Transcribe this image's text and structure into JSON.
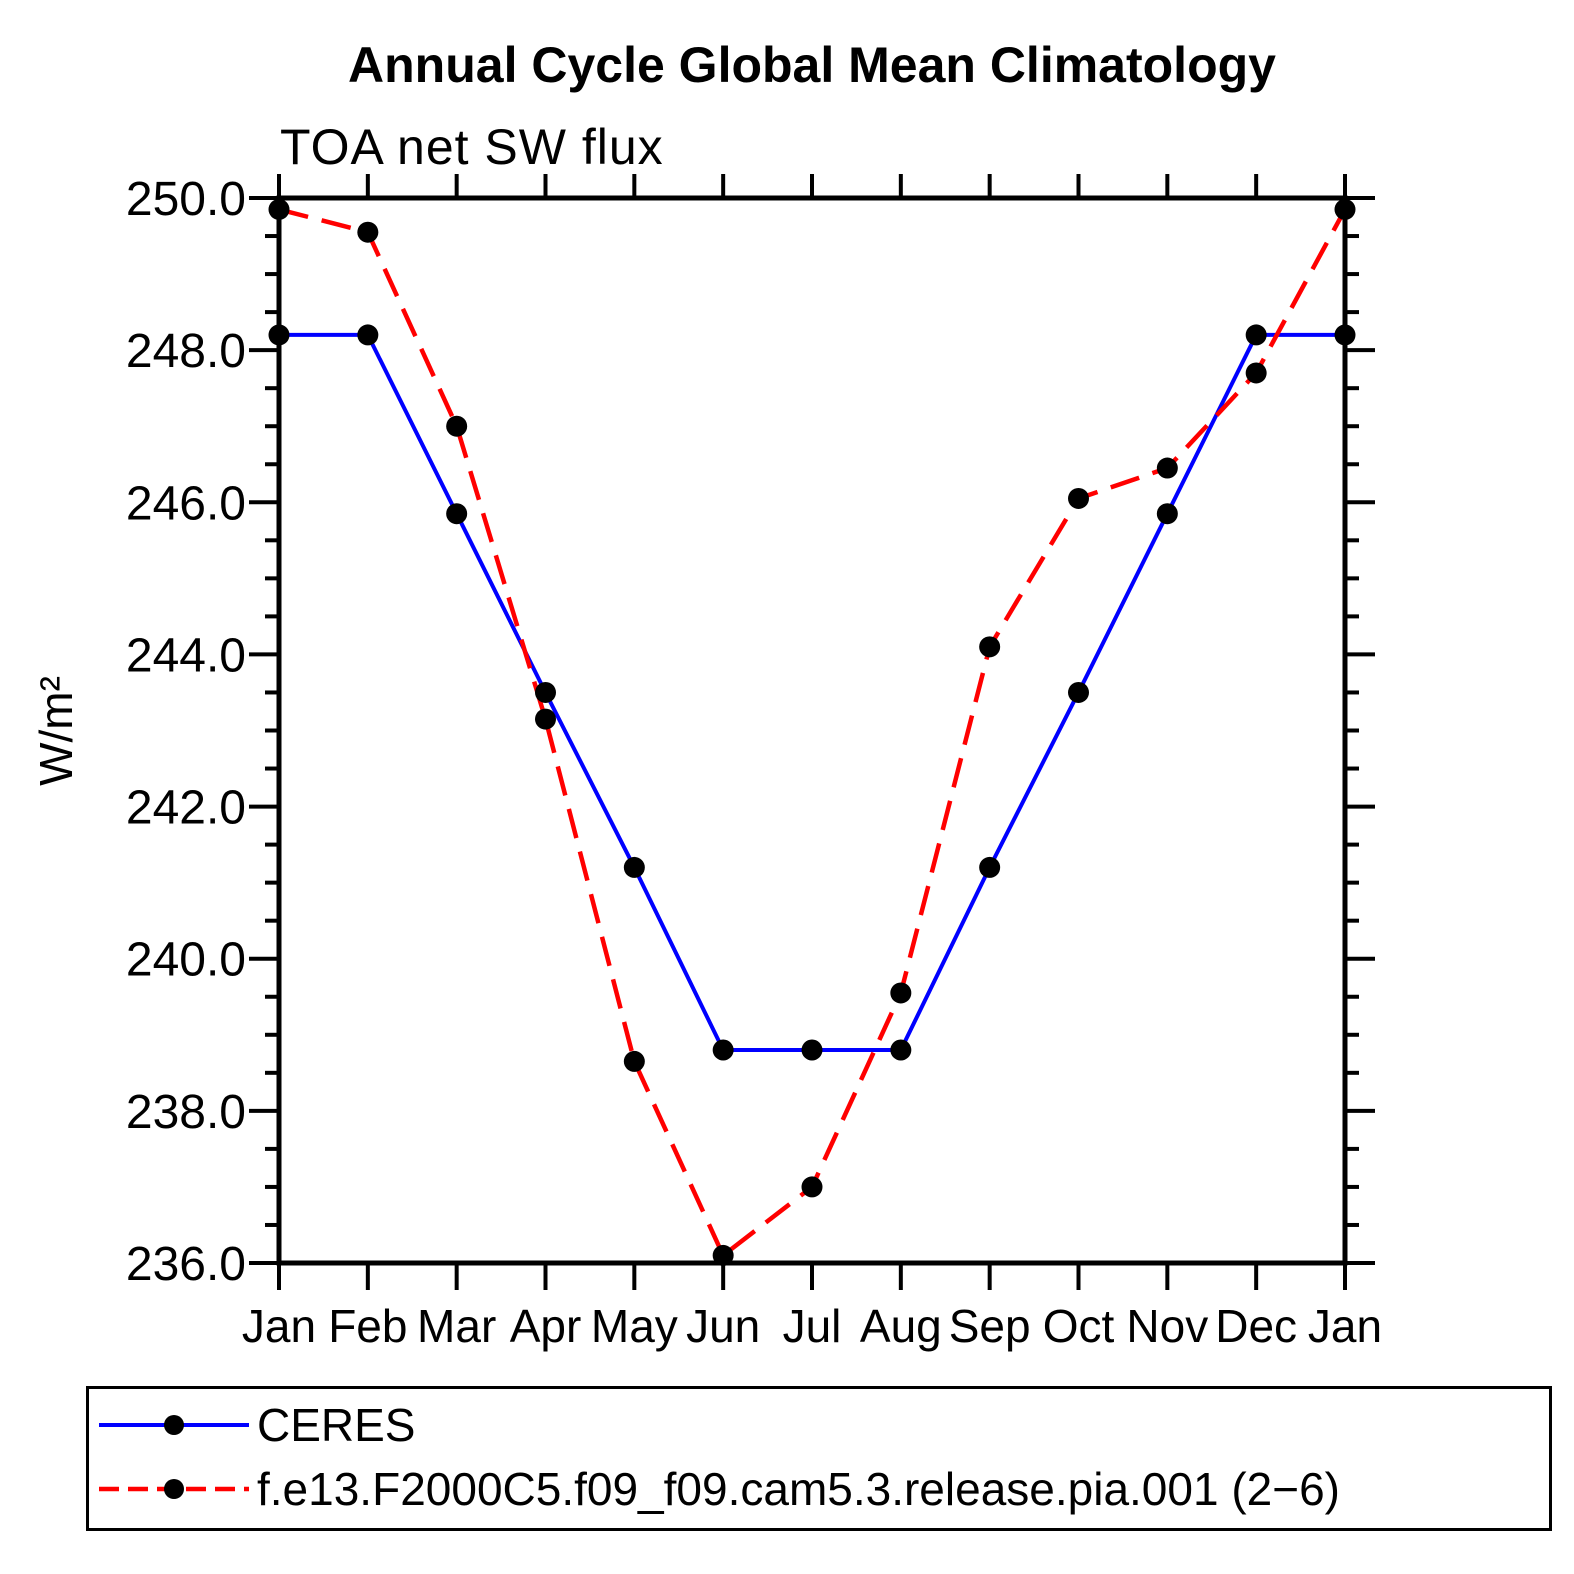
{
  "page": {
    "background": "#ffffff"
  },
  "colors": {
    "axis": "#000000",
    "text": "#000000",
    "ceres_line": "#0000ff",
    "model_line": "#ff0000",
    "marker": "#000000"
  },
  "chart_data": {
    "type": "line",
    "title": "Annual Cycle Global Mean Climatology",
    "subtitle": "TOA net SW flux",
    "xlabel": "",
    "ylabel": "W/m²",
    "categories": [
      "Jan",
      "Feb",
      "Mar",
      "Apr",
      "May",
      "Jun",
      "Jul",
      "Aug",
      "Sep",
      "Oct",
      "Nov",
      "Dec",
      "Jan"
    ],
    "y_axis": {
      "min": 236.0,
      "max": 250.0,
      "major_tick_step": 2.0,
      "minor_tick_step": 0.5,
      "tick_labels": [
        "250.0",
        "248.0",
        "246.0",
        "244.0",
        "242.0",
        "240.0",
        "238.0",
        "236.0"
      ]
    },
    "grid": false,
    "legend_position": "bottom",
    "series": [
      {
        "name": "CERES",
        "color": "#0000ff",
        "line_style": "solid",
        "marker": "filled-circle",
        "marker_color": "#000000",
        "values": [
          248.2,
          248.2,
          245.85,
          243.5,
          241.2,
          238.8,
          238.8,
          238.8,
          241.2,
          243.5,
          245.85,
          248.2,
          248.2
        ]
      },
      {
        "name": "f.e13.F2000C5.f09_f09.cam5.3.release.pia.001 (2−6)",
        "color": "#ff0000",
        "line_style": "dashed",
        "marker": "filled-circle",
        "marker_color": "#000000",
        "values": [
          249.85,
          249.55,
          247.0,
          243.15,
          238.65,
          236.1,
          237.0,
          239.55,
          244.1,
          246.05,
          246.45,
          247.7,
          249.85
        ]
      }
    ]
  }
}
